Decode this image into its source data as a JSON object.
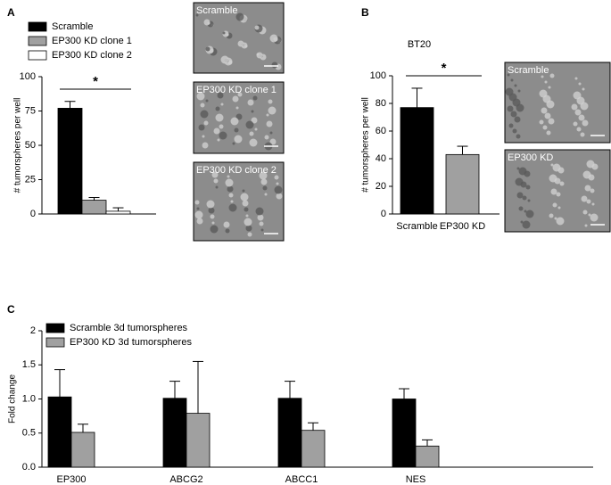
{
  "chart_data": [
    {
      "panel": "A",
      "type": "bar",
      "categories": [
        null
      ],
      "series": [
        {
          "name": "Scramble",
          "color": "#000000",
          "values": [
            77
          ],
          "errors": [
            5
          ]
        },
        {
          "name": "EP300 KD clone 1",
          "color": "#a0a0a0",
          "values": [
            10
          ],
          "errors": [
            2
          ]
        },
        {
          "name": "EP300 KD clone 2",
          "color": "#ffffff",
          "values": [
            2
          ],
          "errors": [
            2.5
          ]
        }
      ],
      "y_label": "# tumorspheres per well",
      "ylim": [
        0,
        100
      ],
      "yticks": [
        0,
        25,
        50,
        75,
        100
      ],
      "annotation": "*",
      "micrographs": [
        "Scramble",
        "EP300 KD clone 1",
        "EP300 KD clone 2"
      ]
    },
    {
      "panel": "B",
      "type": "bar",
      "title": "BT20",
      "categories": [
        "Scramble",
        "EP300 KD"
      ],
      "values": [
        77,
        43
      ],
      "errors": [
        14,
        6
      ],
      "colors": [
        "#000000",
        "#a0a0a0"
      ],
      "y_label": "# tumorspheres per well",
      "ylim": [
        0,
        100
      ],
      "yticks": [
        0,
        20,
        40,
        60,
        80,
        100
      ],
      "annotation": "*",
      "micrographs": [
        "Scramble",
        "EP300 KD"
      ]
    },
    {
      "panel": "C",
      "type": "bar",
      "categories": [
        "EP300",
        "ABCG2",
        "ABCC1",
        "NES"
      ],
      "series": [
        {
          "name": "Scramble 3d tumorspheres",
          "color": "#000000",
          "values": [
            1.03,
            1.01,
            1.01,
            1.0
          ],
          "errors": [
            0.4,
            0.25,
            0.25,
            0.15
          ]
        },
        {
          "name": "EP300 KD 3d tumorspheres",
          "color": "#a0a0a0",
          "values": [
            0.51,
            0.79,
            0.54,
            0.31
          ],
          "errors": [
            0.12,
            0.76,
            0.11,
            0.09
          ]
        }
      ],
      "y_label": "Fold change",
      "ylim": [
        0,
        2
      ],
      "yticks": [
        {
          "value": 0,
          "label": "0.0"
        },
        0.5,
        {
          "value": 1,
          "label": "1.0"
        },
        1.5,
        2
      ]
    }
  ]
}
